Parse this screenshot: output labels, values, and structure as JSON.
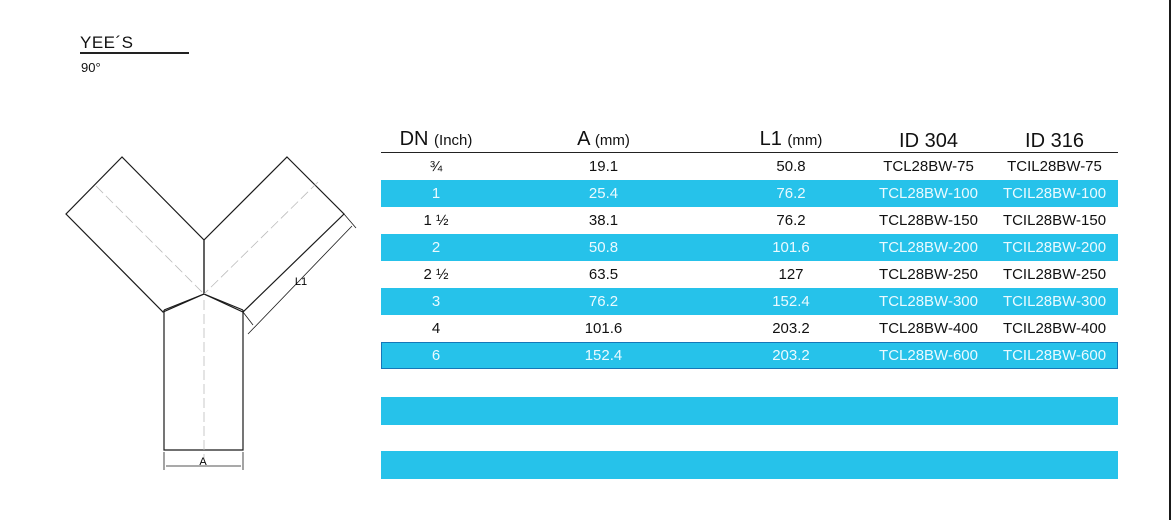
{
  "header": {
    "title": "YEE´S",
    "subtitle": "90°"
  },
  "drawing": {
    "dim_a": "A",
    "dim_l1": "L1"
  },
  "colors": {
    "accent": "#26c2ea",
    "text": "#111111"
  },
  "table": {
    "headers": [
      {
        "label": "DN",
        "unit": "(Inch)"
      },
      {
        "label": "A",
        "unit": "(mm)"
      },
      {
        "label": "L1",
        "unit": "(mm)"
      },
      {
        "label": "ID 304",
        "unit": ""
      },
      {
        "label": "ID 316",
        "unit": ""
      }
    ],
    "rows": [
      [
        "¾",
        "19.1",
        "50.8",
        "TCL28BW-75",
        "TCIL28BW-75"
      ],
      [
        "1",
        "25.4",
        "76.2",
        "TCL28BW-100",
        "TCIL28BW-100"
      ],
      [
        "1 ½",
        "38.1",
        "76.2",
        "TCL28BW-150",
        "TCIL28BW-150"
      ],
      [
        "2",
        "50.8",
        "101.6",
        "TCL28BW-200",
        "TCIL28BW-200"
      ],
      [
        "2 ½",
        "63.5",
        "127",
        "TCL28BW-250",
        "TCIL28BW-250"
      ],
      [
        "3",
        "76.2",
        "152.4",
        "TCL28BW-300",
        "TCIL28BW-300"
      ],
      [
        "4",
        "101.6",
        "203.2",
        "TCL28BW-400",
        "TCIL28BW-400"
      ],
      [
        "6",
        "152.4",
        "203.2",
        "TCL28BW-600",
        "TCIL28BW-600"
      ]
    ]
  }
}
